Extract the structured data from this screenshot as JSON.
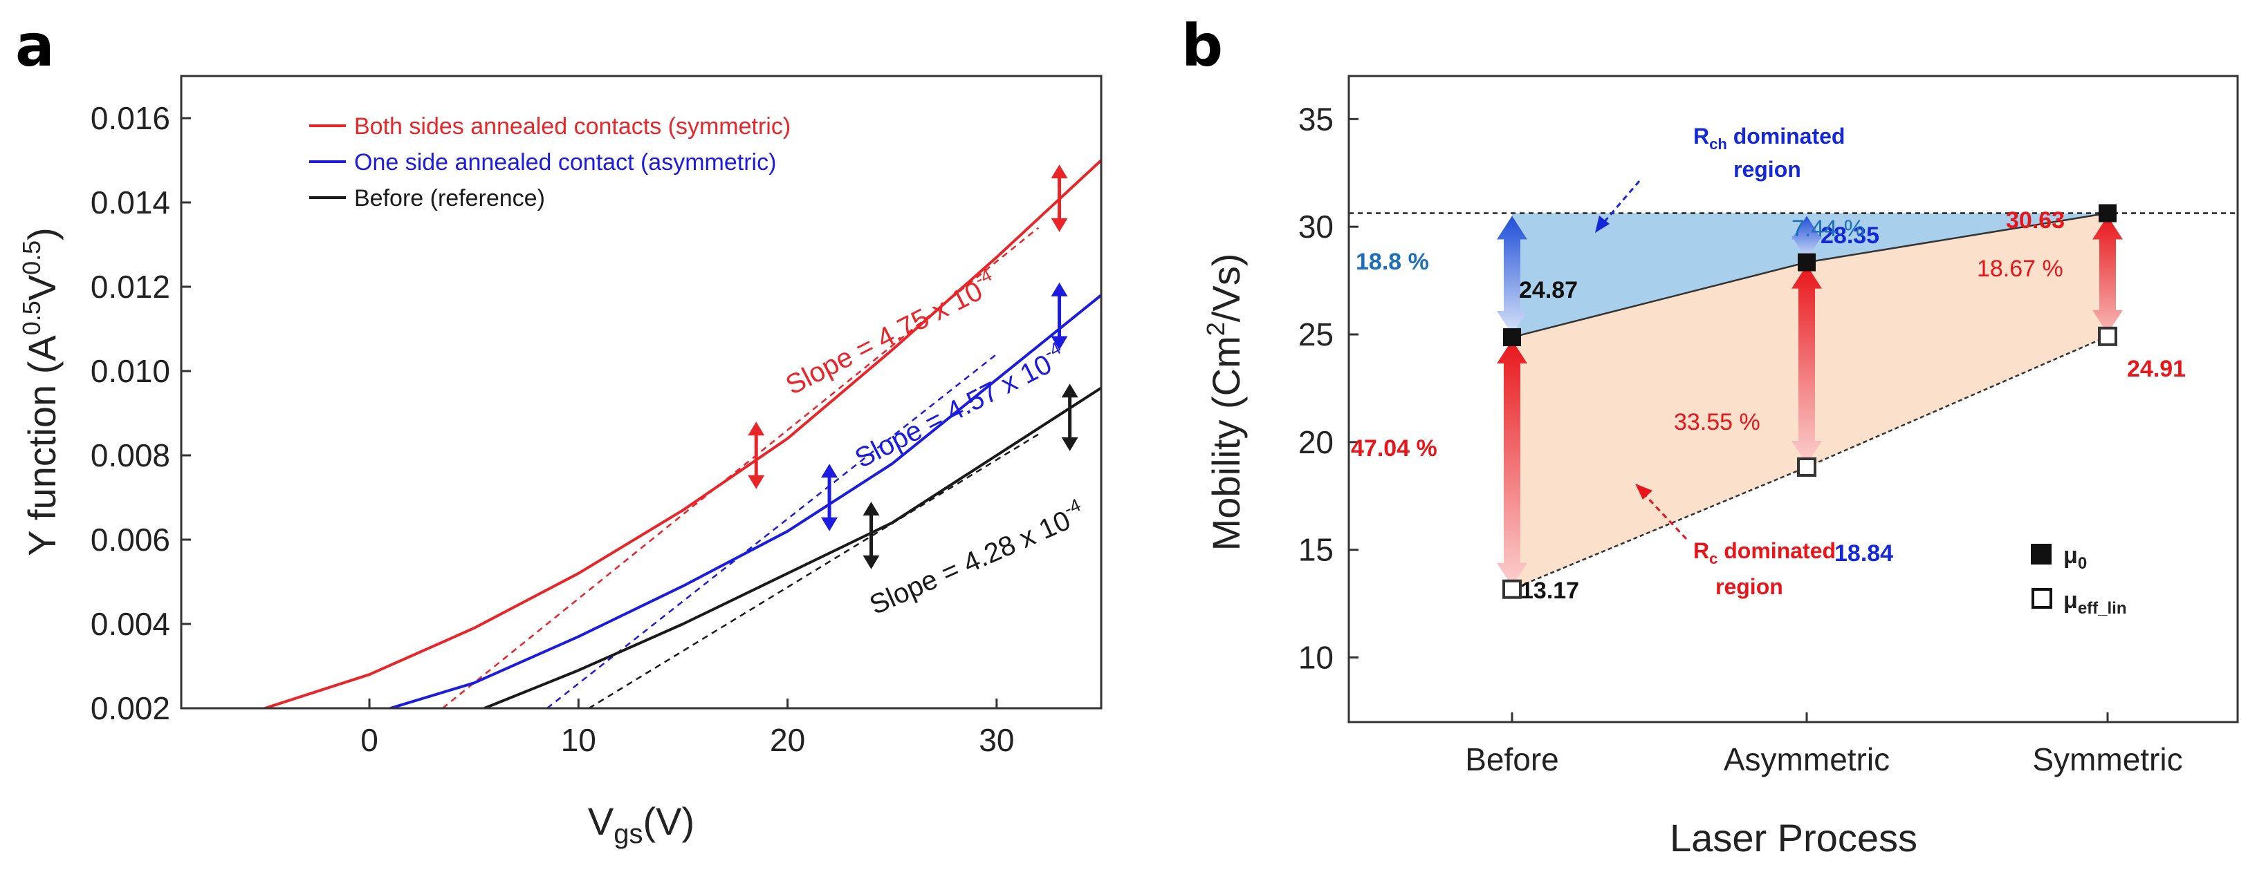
{
  "chart_data": [
    {
      "type": "line",
      "panel": "a",
      "xlabel": "Vgs(V)",
      "ylabel": "Y function (A^0.5V^0.5)",
      "xlim": [
        -9,
        35
      ],
      "ylim": [
        0.002,
        0.017
      ],
      "xticks": [
        "0",
        "10",
        "20",
        "30"
      ],
      "yticks": [
        "0.002",
        "0.004",
        "0.006",
        "0.008",
        "0.010",
        "0.012",
        "0.014",
        "0.016"
      ],
      "series": [
        {
          "name": "Both sides annealed contacts (symmetric)",
          "color": "#e8262a",
          "x": [
            -5,
            0,
            5,
            10,
            15,
            20,
            25,
            30,
            35
          ],
          "y": [
            0.002,
            0.0028,
            0.0039,
            0.0052,
            0.0067,
            0.0084,
            0.0105,
            0.0127,
            0.015
          ],
          "fit": {
            "x": [
              3.5,
              32
            ],
            "y": [
              0.002,
              0.0134
            ]
          },
          "slope": "Slope = 4.75 x 10",
          "exp": "-4"
        },
        {
          "name": "One side annealed contact (asymmetric)",
          "color": "#1c1ce0",
          "x": [
            1,
            5,
            10,
            15,
            20,
            25,
            30,
            35
          ],
          "y": [
            0.002,
            0.0026,
            0.0037,
            0.0049,
            0.0062,
            0.0078,
            0.0098,
            0.0118
          ],
          "fit": {
            "x": [
              8.5,
              30
            ],
            "y": [
              0.002,
              0.0104
            ]
          },
          "slope": "Slope = 4.57 x 10",
          "exp": "-4"
        },
        {
          "name": "Before (reference)",
          "color": "#1a1a1a",
          "x": [
            5.5,
            10,
            15,
            20,
            25,
            30,
            35
          ],
          "y": [
            0.002,
            0.0029,
            0.004,
            0.0052,
            0.0064,
            0.008,
            0.0096
          ],
          "fit": {
            "x": [
              10.5,
              32
            ],
            "y": [
              0.002,
              0.0085
            ]
          },
          "slope": "Slope = 4.28 x 10",
          "exp": "-4"
        }
      ],
      "arrows": [
        {
          "x": 18.5,
          "y1": 0.0072,
          "y2": 0.0088,
          "color": "#e8262a"
        },
        {
          "x": 33.0,
          "y1": 0.0133,
          "y2": 0.0149,
          "color": "#e8262a"
        },
        {
          "x": 22.0,
          "y1": 0.0062,
          "y2": 0.0078,
          "color": "#1c1ce0"
        },
        {
          "x": 33.0,
          "y1": 0.0105,
          "y2": 0.0121,
          "color": "#1c1ce0"
        },
        {
          "x": 24.0,
          "y1": 0.0053,
          "y2": 0.0069,
          "color": "#1a1a1a"
        },
        {
          "x": 33.5,
          "y1": 0.0081,
          "y2": 0.0097,
          "color": "#1a1a1a"
        }
      ]
    },
    {
      "type": "scatter",
      "panel": "b",
      "xlabel": "Laser Process",
      "ylabel": "Mobility (Cm²/Vs)",
      "categories": [
        "Before",
        "Asymmetric",
        "Symmetric"
      ],
      "ylim": [
        7,
        37
      ],
      "yticks": [
        "10",
        "15",
        "20",
        "25",
        "30",
        "35"
      ],
      "reference_line": 30.63,
      "series": [
        {
          "name": "μ0",
          "marker": "filled-square",
          "values": [
            24.87,
            28.35,
            30.63
          ],
          "labels": [
            "24.87",
            "28.35",
            "30.63"
          ]
        },
        {
          "name": "μeff_lin",
          "marker": "open-square",
          "values": [
            13.17,
            18.84,
            24.91
          ],
          "labels": [
            "13.17",
            "18.84",
            "24.91"
          ]
        }
      ],
      "percent_labels": [
        "18.8 %",
        "7.44 %",
        "18.67 %",
        "47.04 %",
        "33.55 %"
      ],
      "region_labels": {
        "rch_main": "R",
        "rch_sub": "ch",
        "rch_rest": " dominated",
        "rch_line2": "region",
        "rc_main": "R",
        "rc_sub": "c",
        "rc_rest": " dominated",
        "rc_line2": "region"
      },
      "legend": {
        "mu0_main": "μ",
        "mu0_sub": "0",
        "mueff_main": "μ",
        "mueff_sub": "eff_lin"
      },
      "colors": {
        "blue_region": "#a8d0ec",
        "orange_region": "#fbe0cc",
        "red": "#e8161b",
        "blue": "#1428d8",
        "pct_blue": "#1f6fb8"
      }
    }
  ],
  "panel_labels": [
    "a",
    "b"
  ]
}
